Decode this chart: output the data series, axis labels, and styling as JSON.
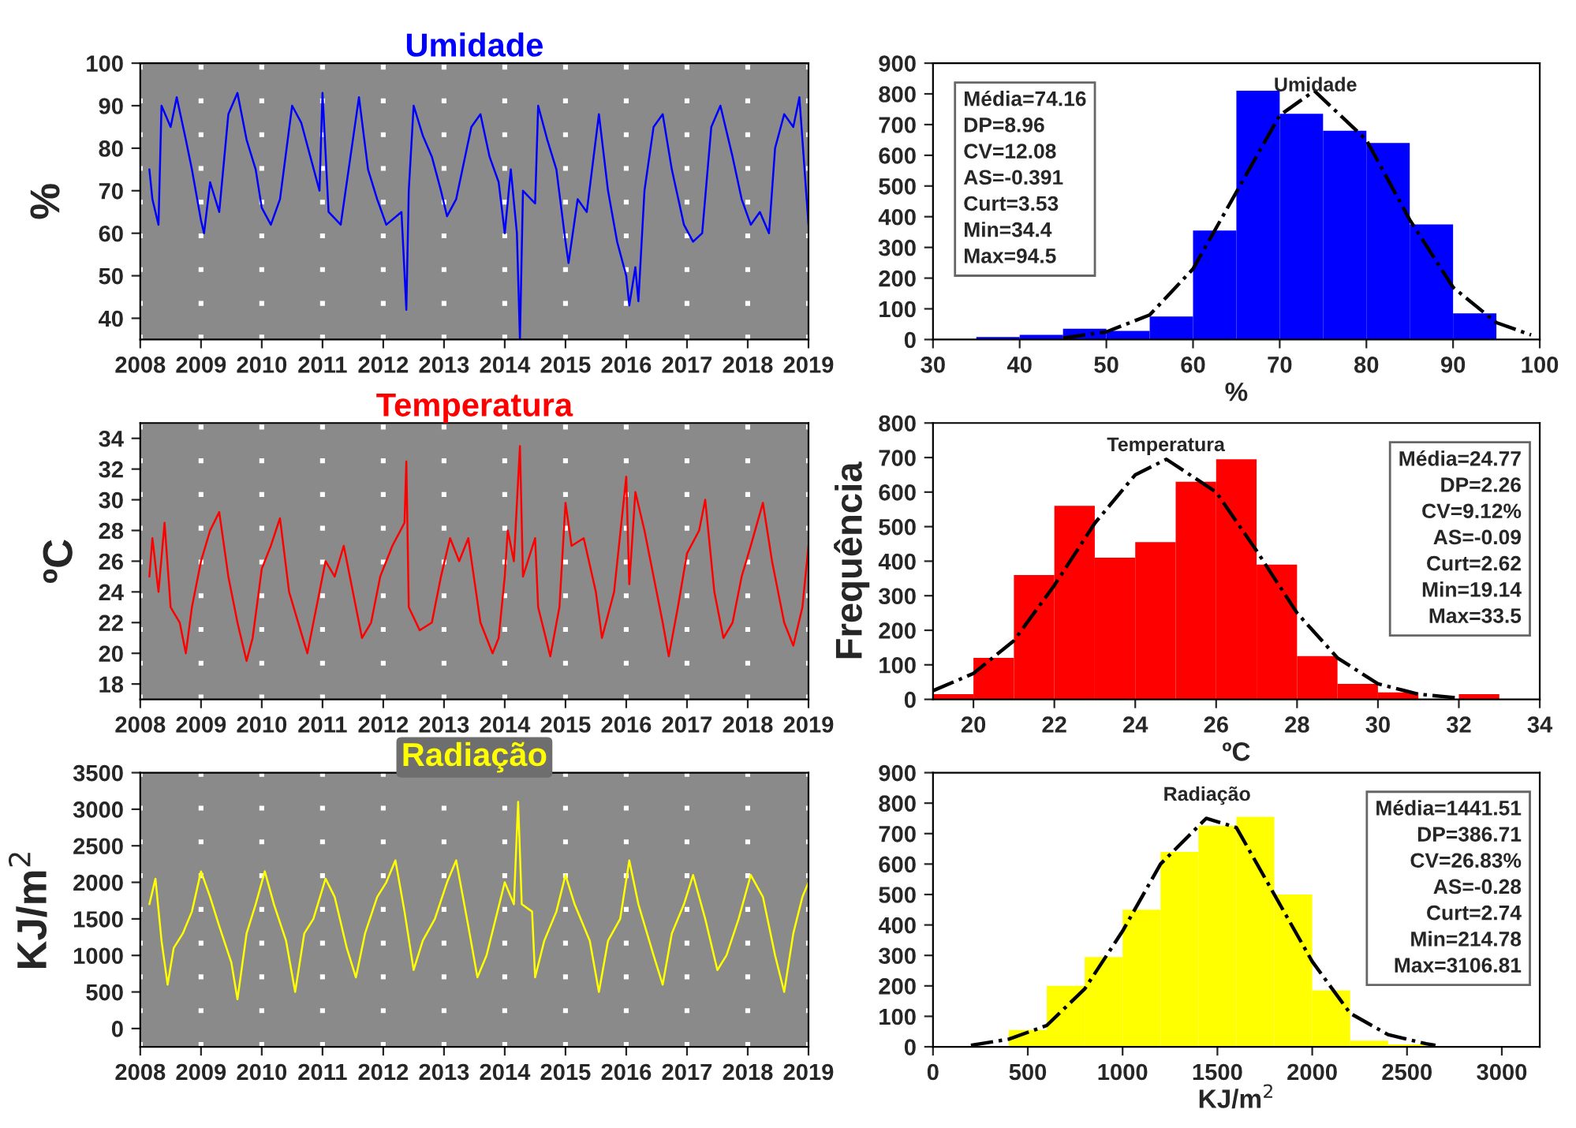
{
  "chart_data": [
    {
      "type": "line",
      "title": "Umidade",
      "ylabel": "%",
      "xlim": [
        2008,
        2019
      ],
      "ylim": [
        35,
        100
      ],
      "xticks": [
        2008,
        2009,
        2010,
        2011,
        2012,
        2013,
        2014,
        2015,
        2016,
        2017,
        2018,
        2019
      ],
      "yticks": [
        40,
        50,
        60,
        70,
        80,
        90,
        100
      ],
      "grid": "x",
      "x": [
        2008.15,
        2008.2,
        2008.3,
        2008.35,
        2008.5,
        2008.6,
        2008.75,
        2008.85,
        2009.0,
        2009.05,
        2009.15,
        2009.3,
        2009.45,
        2009.6,
        2009.75,
        2009.9,
        2010.0,
        2010.15,
        2010.3,
        2010.5,
        2010.65,
        2010.8,
        2010.95,
        2011.0,
        2011.1,
        2011.3,
        2011.5,
        2011.6,
        2011.75,
        2011.9,
        2012.05,
        2012.3,
        2012.38,
        2012.42,
        2012.5,
        2012.65,
        2012.8,
        2012.95,
        2013.05,
        2013.2,
        2013.45,
        2013.6,
        2013.75,
        2013.9,
        2014.0,
        2014.1,
        2014.2,
        2014.25,
        2014.3,
        2014.5,
        2014.55,
        2014.7,
        2014.85,
        2015.0,
        2015.05,
        2015.2,
        2015.35,
        2015.55,
        2015.7,
        2015.85,
        2016.0,
        2016.05,
        2016.15,
        2016.2,
        2016.3,
        2016.45,
        2016.6,
        2016.75,
        2016.95,
        2017.1,
        2017.25,
        2017.4,
        2017.55,
        2017.75,
        2017.9,
        2018.05,
        2018.2,
        2018.35,
        2018.45,
        2018.6,
        2018.75,
        2018.85,
        2018.95,
        2019.0
      ],
      "series": [
        {
          "color": "#0000ff",
          "values": [
            75,
            68,
            62,
            90,
            85,
            92,
            82,
            75,
            63,
            60,
            72,
            65,
            88,
            93,
            82,
            75,
            66,
            62,
            68,
            90,
            86,
            78,
            70,
            93,
            65,
            62,
            82,
            92,
            75,
            68,
            62,
            65,
            42,
            70,
            90,
            83,
            78,
            70,
            64,
            68,
            85,
            88,
            78,
            72,
            60,
            75,
            60,
            35,
            70,
            67,
            90,
            82,
            75,
            58,
            53,
            68,
            65,
            88,
            70,
            58,
            50,
            43,
            52,
            44,
            70,
            85,
            88,
            75,
            62,
            58,
            60,
            85,
            90,
            78,
            68,
            62,
            65,
            60,
            80,
            88,
            85,
            92,
            72,
            62
          ]
        }
      ]
    },
    {
      "type": "histogram",
      "xlabel": "%",
      "xlim": [
        30,
        100
      ],
      "ylim": [
        0,
        900
      ],
      "xticks": [
        30,
        40,
        50,
        60,
        70,
        80,
        90,
        100
      ],
      "yticks": [
        0,
        100,
        200,
        300,
        400,
        500,
        600,
        700,
        800,
        900
      ],
      "color": "#0000ff",
      "bins": [
        30,
        35,
        40,
        45,
        50,
        55,
        60,
        65,
        70,
        75,
        80,
        85,
        90,
        95
      ],
      "values": [
        null,
        8,
        15,
        35,
        28,
        75,
        355,
        810,
        735,
        680,
        640,
        375,
        85
      ],
      "series": [
        {
          "type": "line",
          "color": "#000000",
          "line_style": "dashdot",
          "x": [
            45,
            50,
            55,
            60,
            65,
            70,
            74,
            80,
            85,
            90,
            95,
            99
          ],
          "values": [
            5,
            25,
            80,
            230,
            480,
            730,
            810,
            650,
            390,
            170,
            55,
            15
          ]
        }
      ],
      "annotations": [
        "Umidade",
        "Média=74.16\nDP=8.96\nCV=12.08\nAS=-0.391\nCurt=3.53\nMin=34.4\nMax=94.5"
      ]
    },
    {
      "type": "line",
      "title": "Temperatura",
      "ylabel": "ºC",
      "xlim": [
        2008,
        2019
      ],
      "ylim": [
        17,
        35
      ],
      "xticks": [
        2008,
        2009,
        2010,
        2011,
        2012,
        2013,
        2014,
        2015,
        2016,
        2017,
        2018,
        2019
      ],
      "yticks": [
        18,
        20,
        22,
        24,
        26,
        28,
        30,
        32,
        34
      ],
      "grid": "x",
      "x": [
        2008.15,
        2008.2,
        2008.3,
        2008.4,
        2008.5,
        2008.65,
        2008.75,
        2008.85,
        2009.0,
        2009.15,
        2009.3,
        2009.45,
        2009.6,
        2009.75,
        2009.85,
        2010.0,
        2010.15,
        2010.3,
        2010.45,
        2010.6,
        2010.75,
        2010.9,
        2011.05,
        2011.2,
        2011.35,
        2011.5,
        2011.65,
        2011.8,
        2011.95,
        2012.15,
        2012.35,
        2012.38,
        2012.42,
        2012.6,
        2012.8,
        2012.95,
        2013.1,
        2013.25,
        2013.4,
        2013.6,
        2013.8,
        2013.9,
        2014.0,
        2014.05,
        2014.15,
        2014.25,
        2014.3,
        2014.5,
        2014.55,
        2014.75,
        2014.9,
        2015.0,
        2015.1,
        2015.3,
        2015.5,
        2015.6,
        2015.8,
        2016.0,
        2016.05,
        2016.15,
        2016.3,
        2016.45,
        2016.6,
        2016.7,
        2016.85,
        2017.0,
        2017.2,
        2017.3,
        2017.45,
        2017.6,
        2017.75,
        2017.9,
        2018.05,
        2018.25,
        2018.4,
        2018.6,
        2018.75,
        2018.9,
        2019.0
      ],
      "series": [
        {
          "color": "#ff0000",
          "values": [
            25,
            27.5,
            24,
            28.5,
            23,
            22,
            20,
            23,
            26,
            28,
            29.2,
            25,
            22,
            19.5,
            21,
            25.5,
            27,
            28.8,
            24,
            22,
            20,
            23,
            26,
            25,
            27,
            24,
            21,
            22,
            25,
            27,
            28.5,
            32.5,
            23,
            21.5,
            22,
            25,
            27.5,
            26,
            27.5,
            22,
            20,
            21,
            25,
            28,
            26,
            33.5,
            25,
            27.5,
            23,
            19.8,
            23,
            29.8,
            27,
            27.5,
            24,
            21,
            24,
            31.5,
            24.5,
            30.5,
            28,
            25,
            22,
            19.8,
            23,
            26.5,
            28,
            30,
            24,
            21,
            22,
            25,
            27,
            29.8,
            26,
            22,
            20.5,
            23,
            27
          ]
        }
      ]
    },
    {
      "type": "histogram",
      "xlabel": "ºC",
      "ylabel": "Frequência",
      "xlim": [
        19,
        34
      ],
      "ylim": [
        0,
        800
      ],
      "xticks": [
        20,
        22,
        24,
        26,
        28,
        30,
        32,
        34
      ],
      "yticks": [
        0,
        100,
        200,
        300,
        400,
        500,
        600,
        700,
        800
      ],
      "color": "#ff0000",
      "bins": [
        19,
        20,
        21,
        22,
        23,
        24,
        25,
        26,
        27,
        28,
        29,
        30,
        31,
        32,
        33
      ],
      "values": [
        15,
        120,
        360,
        560,
        410,
        455,
        630,
        695,
        390,
        125,
        45,
        20,
        null,
        15
      ],
      "series": [
        {
          "type": "line",
          "color": "#000000",
          "line_style": "dashdot",
          "x": [
            19,
            20,
            21,
            22,
            23,
            24,
            24.77,
            26,
            27,
            28,
            29,
            30,
            31,
            32
          ],
          "values": [
            25,
            75,
            170,
            330,
            510,
            650,
            695,
            600,
            430,
            250,
            120,
            45,
            15,
            4
          ]
        }
      ],
      "annotations": [
        "Temperatura",
        "Média=24.77\nDP=2.26\nCV=9.12%\nAS=-0.09\nCurt=2.62\nMin=19.14\nMax=33.5"
      ]
    },
    {
      "type": "line",
      "title": "Radiação",
      "ylabel": "KJ/m$^{2}$",
      "xlim": [
        2008,
        2019
      ],
      "ylim": [
        -250,
        3500
      ],
      "xticks": [
        2008,
        2009,
        2010,
        2011,
        2012,
        2013,
        2014,
        2015,
        2016,
        2017,
        2018,
        2019
      ],
      "yticks": [
        0,
        500,
        1000,
        1500,
        2000,
        2500,
        3000,
        3500
      ],
      "grid": "x",
      "x": [
        2008.15,
        2008.25,
        2008.35,
        2008.45,
        2008.55,
        2008.7,
        2008.85,
        2009.0,
        2009.15,
        2009.3,
        2009.5,
        2009.6,
        2009.75,
        2009.9,
        2010.05,
        2010.2,
        2010.4,
        2010.55,
        2010.7,
        2010.85,
        2011.05,
        2011.2,
        2011.4,
        2011.55,
        2011.7,
        2011.9,
        2012.05,
        2012.2,
        2012.35,
        2012.5,
        2012.65,
        2012.85,
        2013.05,
        2013.2,
        2013.4,
        2013.55,
        2013.7,
        2013.85,
        2014.0,
        2014.15,
        2014.22,
        2014.28,
        2014.45,
        2014.5,
        2014.65,
        2014.85,
        2015.0,
        2015.15,
        2015.4,
        2015.55,
        2015.7,
        2015.9,
        2016.05,
        2016.2,
        2016.45,
        2016.6,
        2016.75,
        2016.95,
        2017.1,
        2017.3,
        2017.5,
        2017.65,
        2017.85,
        2018.05,
        2018.25,
        2018.45,
        2018.6,
        2018.75,
        2018.9,
        2019.0
      ],
      "series": [
        {
          "color": "#ffff00",
          "values": [
            1700,
            2050,
            1200,
            600,
            1100,
            1300,
            1600,
            2150,
            1800,
            1400,
            900,
            400,
            1300,
            1700,
            2150,
            1700,
            1200,
            500,
            1300,
            1500,
            2050,
            1800,
            1100,
            700,
            1300,
            1800,
            2000,
            2300,
            1600,
            800,
            1200,
            1500,
            2000,
            2300,
            1400,
            700,
            1000,
            1500,
            2000,
            1700,
            3100,
            1700,
            1600,
            700,
            1200,
            1600,
            2100,
            1700,
            1200,
            500,
            1200,
            1500,
            2300,
            1700,
            1000,
            600,
            1300,
            1700,
            2100,
            1500,
            800,
            1000,
            1500,
            2100,
            1800,
            1000,
            500,
            1300,
            1800,
            2000
          ]
        }
      ]
    },
    {
      "type": "histogram",
      "xlabel": "KJ/m$^{2}$",
      "xlim": [
        0,
        3200
      ],
      "ylim": [
        0,
        900
      ],
      "xticks": [
        0,
        500,
        1000,
        1500,
        2000,
        2500,
        3000
      ],
      "yticks": [
        0,
        100,
        200,
        300,
        400,
        500,
        600,
        700,
        800,
        900
      ],
      "color": "#ffff00",
      "bins": [
        200,
        400,
        600,
        800,
        1000,
        1200,
        1400,
        1600,
        1800,
        2000,
        2200,
        2400,
        2600,
        2800
      ],
      "values": [
        null,
        55,
        200,
        295,
        450,
        640,
        725,
        755,
        500,
        185,
        20,
        8,
        3
      ],
      "series": [
        {
          "type": "line",
          "color": "#000000",
          "line_style": "dashdot",
          "x": [
            200,
            400,
            600,
            800,
            1000,
            1200,
            1441,
            1600,
            1800,
            2000,
            2200,
            2400,
            2600,
            2650
          ],
          "values": [
            5,
            25,
            70,
            190,
            380,
            600,
            750,
            720,
            500,
            280,
            110,
            40,
            10,
            5
          ]
        }
      ],
      "annotations": [
        "Radiação",
        "Média=1441.51\nDP=386.71\nCV=26.83%\nAS=-0.28\nCurt=2.74\nMin=214.78\nMax=3106.81"
      ]
    }
  ]
}
